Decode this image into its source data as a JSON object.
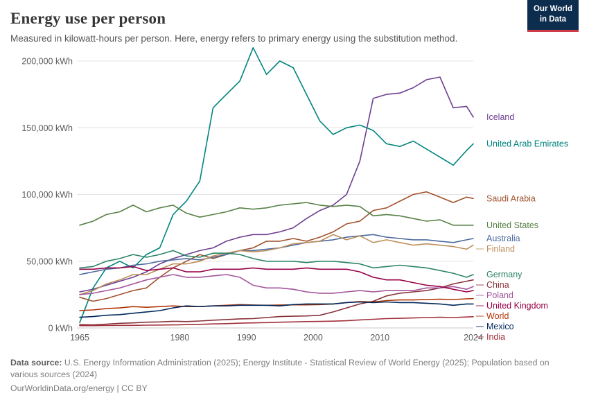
{
  "header": {
    "title": "Energy use per person",
    "subtitle": "Measured in kilowatt-hours per person. Here, energy refers to primary energy using the substitution method.",
    "logo": {
      "line1": "Our World",
      "line2": "in Data",
      "bg": "#0d2d4e",
      "accent": "#cf3b46"
    }
  },
  "chart_data": {
    "type": "line",
    "title": "Energy use per person",
    "unit": "kWh",
    "xlim": [
      1965,
      2024
    ],
    "ylim": [
      0,
      200000
    ],
    "grid": "horizontal",
    "legend_position": "right-of-line-ends",
    "x_ticks": [
      1965,
      1980,
      1990,
      2000,
      2010,
      2024
    ],
    "y_ticks": [
      0,
      50000,
      100000,
      150000,
      200000
    ],
    "y_tick_labels": [
      "0 kWh",
      "50,000 kWh",
      "100,000 kWh",
      "150,000 kWh",
      "200,000 kWh"
    ],
    "x": [
      1965,
      1967,
      1969,
      1971,
      1973,
      1975,
      1977,
      1979,
      1981,
      1983,
      1985,
      1987,
      1989,
      1991,
      1993,
      1995,
      1997,
      1999,
      2001,
      2003,
      2005,
      2007,
      2009,
      2011,
      2013,
      2015,
      2017,
      2019,
      2021,
      2023,
      2024
    ],
    "series": [
      {
        "name": "Iceland",
        "color": "#6D3E91",
        "values": [
          27000,
          29000,
          32000,
          35000,
          38000,
          42000,
          48000,
          52000,
          55000,
          58000,
          60000,
          65000,
          68000,
          70000,
          70000,
          72000,
          75000,
          82000,
          88000,
          92000,
          100000,
          125000,
          172000,
          175000,
          176000,
          180000,
          186000,
          188000,
          165000,
          166000,
          158000
        ]
      },
      {
        "name": "United Arab Emirates",
        "color": "#00847E",
        "values": [
          4000,
          30000,
          45000,
          50000,
          45000,
          55000,
          60000,
          85000,
          95000,
          110000,
          165000,
          175000,
          185000,
          210000,
          190000,
          200000,
          195000,
          175000,
          155000,
          145000,
          150000,
          152000,
          148000,
          138000,
          136000,
          140000,
          134000,
          128000,
          122000,
          133000,
          138000
        ]
      },
      {
        "name": "Saudi Arabia",
        "color": "#A0522D",
        "values": [
          23000,
          20000,
          22000,
          25000,
          28000,
          30000,
          38000,
          45000,
          50000,
          55000,
          52000,
          55000,
          58000,
          60000,
          65000,
          65000,
          67000,
          65000,
          68000,
          72000,
          78000,
          80000,
          88000,
          90000,
          95000,
          100000,
          102000,
          98000,
          94000,
          98000,
          97000
        ]
      },
      {
        "name": "United States",
        "color": "#578145",
        "values": [
          77000,
          80000,
          85000,
          87000,
          92000,
          87000,
          90000,
          92000,
          86000,
          83000,
          85000,
          87000,
          90000,
          89000,
          90000,
          92000,
          93000,
          94000,
          92000,
          91000,
          92000,
          91000,
          84000,
          85000,
          84000,
          82000,
          80000,
          81000,
          77000,
          77000,
          77000
        ]
      },
      {
        "name": "Australia",
        "color": "#4C6A9C",
        "values": [
          40000,
          42000,
          44000,
          45000,
          47000,
          48000,
          50000,
          51000,
          52000,
          51000,
          53000,
          55000,
          58000,
          58000,
          59000,
          60000,
          62000,
          64000,
          65000,
          66000,
          68000,
          69000,
          70000,
          68000,
          67000,
          66000,
          66000,
          65000,
          64000,
          66000,
          67000
        ]
      },
      {
        "name": "Finland",
        "color": "#BC8E5A",
        "values": [
          25000,
          28000,
          33000,
          36000,
          40000,
          40000,
          44000,
          48000,
          48000,
          50000,
          54000,
          56000,
          58000,
          57000,
          58000,
          60000,
          63000,
          64000,
          65000,
          70000,
          66000,
          69000,
          64000,
          66000,
          64000,
          62000,
          63000,
          62000,
          61000,
          59000,
          62000
        ]
      },
      {
        "name": "Germany",
        "color": "#2C8465",
        "values": [
          45000,
          46000,
          50000,
          52000,
          55000,
          53000,
          55000,
          58000,
          54000,
          53000,
          56000,
          56000,
          55000,
          52000,
          50000,
          50000,
          50000,
          49000,
          50000,
          50000,
          49000,
          48000,
          45000,
          46000,
          47000,
          46000,
          45000,
          43000,
          41000,
          38000,
          40000
        ]
      },
      {
        "name": "China",
        "color": "#883039",
        "values": [
          2500,
          2300,
          2800,
          3500,
          3800,
          4300,
          4500,
          5000,
          4800,
          5200,
          5800,
          6300,
          6800,
          7000,
          7800,
          8500,
          8800,
          9000,
          9500,
          12000,
          15000,
          18000,
          20000,
          24000,
          26000,
          27000,
          28000,
          30000,
          33000,
          35000,
          36000
        ]
      },
      {
        "name": "Poland",
        "color": "#A2559C",
        "values": [
          25000,
          26000,
          28000,
          30000,
          33000,
          36000,
          38000,
          40000,
          38000,
          38000,
          39000,
          40000,
          38000,
          32000,
          30000,
          30000,
          29000,
          27000,
          26000,
          26000,
          27000,
          28000,
          27000,
          28000,
          28000,
          28000,
          30000,
          30000,
          31000,
          29000,
          31000
        ]
      },
      {
        "name": "United Kingdom",
        "color": "#970046",
        "values": [
          44000,
          44000,
          45000,
          45000,
          46000,
          43000,
          44000,
          45000,
          42000,
          42000,
          44000,
          44000,
          44000,
          45000,
          44000,
          44000,
          44000,
          45000,
          44000,
          44000,
          44000,
          42000,
          38000,
          36000,
          36000,
          34000,
          32000,
          31000,
          29000,
          27000,
          28000
        ]
      },
      {
        "name": "World",
        "color": "#B13507",
        "values": [
          13000,
          13500,
          14500,
          15000,
          16000,
          15500,
          16000,
          16500,
          16000,
          16000,
          16500,
          17000,
          17500,
          17200,
          17000,
          17200,
          17300,
          17300,
          17500,
          18000,
          19000,
          19800,
          19500,
          20500,
          21000,
          21000,
          21300,
          21500,
          21300,
          21800,
          22000
        ]
      },
      {
        "name": "Mexico",
        "color": "#00295B",
        "values": [
          8000,
          8500,
          9500,
          10000,
          11000,
          12000,
          13000,
          15000,
          16500,
          16000,
          16500,
          16500,
          17000,
          17000,
          17000,
          16500,
          17500,
          18000,
          18000,
          18000,
          19000,
          19500,
          19000,
          19500,
          19000,
          19000,
          18500,
          18000,
          17000,
          18000,
          18000
        ]
      },
      {
        "name": "India",
        "color": "#A2303C",
        "values": [
          1700,
          1700,
          1800,
          1900,
          1900,
          2100,
          2200,
          2300,
          2500,
          2700,
          3000,
          3200,
          3600,
          3800,
          4000,
          4300,
          4500,
          4800,
          4900,
          5100,
          5400,
          6000,
          6500,
          7000,
          7200,
          7500,
          7800,
          8000,
          7800,
          8200,
          8400
        ]
      }
    ]
  },
  "footer": {
    "source_label": "Data source:",
    "source_text": "U.S. Energy Information Administration (2025); Energy Institute - Statistical Review of World Energy (2025); Population based on various sources (2024)",
    "link_text": "OurWorldinData.org/energy | CC BY"
  }
}
